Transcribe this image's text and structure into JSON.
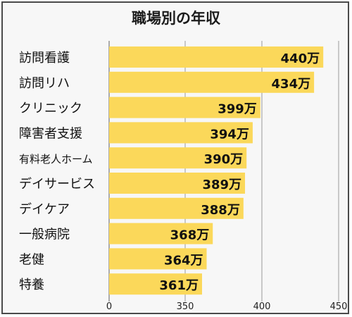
{
  "chart_data": {
    "type": "bar",
    "orientation": "horizontal",
    "title": "職場別の年収",
    "categories": [
      "訪問看護",
      "訪問リハ",
      "クリニック",
      "障害者支援",
      "有料老人ホーム",
      "デイサービス",
      "デイケア",
      "一般病院",
      "老健",
      "特養"
    ],
    "values": [
      440,
      434,
      399,
      394,
      390,
      389,
      388,
      368,
      364,
      361
    ],
    "value_labels": [
      "440万",
      "434万",
      "399万",
      "394万",
      "390万",
      "389万",
      "388万",
      "368万",
      "364万",
      "361万"
    ],
    "x_ticks": [
      0,
      350,
      400,
      450
    ],
    "x_tick_labels": [
      "0",
      "350",
      "400",
      "450"
    ],
    "xlim": [
      0,
      450
    ],
    "axis_break": [
      0,
      350
    ],
    "grid": true,
    "xlabel": "",
    "ylabel": "",
    "bar_color": "#fbd85a",
    "grid_color": "#9a9a9a"
  }
}
